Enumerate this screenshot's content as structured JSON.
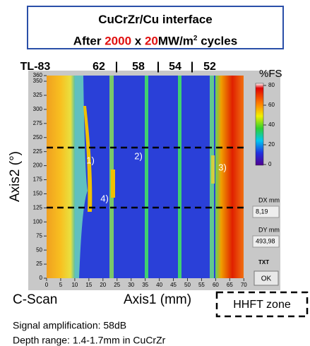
{
  "title": {
    "line1": "CuCrZr/Cu interface",
    "line2": [
      "After ",
      "2000",
      " x ",
      "20",
      "MW/m",
      "2",
      " cycles"
    ]
  },
  "header_labels": [
    "TL-83",
    "62",
    "|",
    "58",
    "|",
    "54",
    "|",
    "52"
  ],
  "color_scale": {
    "label": "%FS",
    "ticks": [
      80,
      60,
      40,
      20,
      0
    ]
  },
  "y_axis": {
    "label": "Axis2 (°)",
    "ticks": [
      0,
      25,
      50,
      75,
      100,
      125,
      150,
      175,
      200,
      225,
      250,
      275,
      300,
      325,
      350,
      360
    ]
  },
  "x_axis": {
    "label": "Axis1 (mm)",
    "ticks": [
      0,
      5,
      10,
      15,
      20,
      25,
      30,
      35,
      40,
      45,
      50,
      55,
      60,
      65,
      70
    ]
  },
  "panel": {
    "name": "C-Scan",
    "dx_label": "DX mm",
    "dx_value": "8,19",
    "dy_label": "DY mm",
    "dy_value": "493,98",
    "txt": "TXT",
    "ok": "OK"
  },
  "annotations": [
    "1)",
    "2)",
    "3)",
    "4)"
  ],
  "zone_label": "HHFT zone",
  "notes": [
    "Signal amplification: 58dB",
    "Depth range: 1.4-1.7mm in CuCrZr"
  ]
}
